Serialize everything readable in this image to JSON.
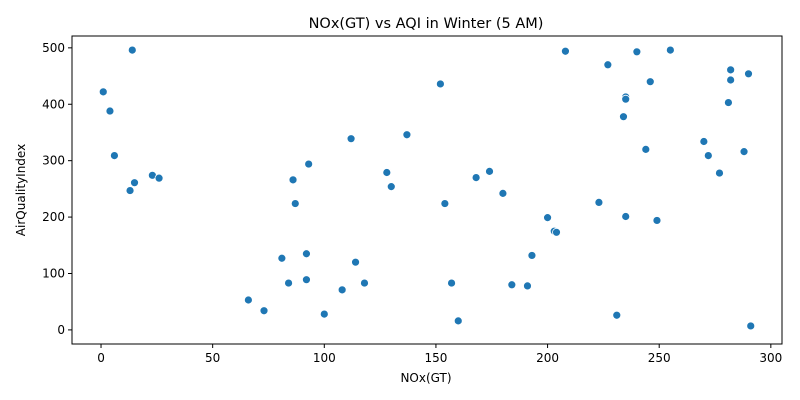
{
  "chart_data": {
    "type": "scatter",
    "title": "NOx(GT) vs AQI in Winter (5 AM)",
    "xlabel": "NOx(GT)",
    "ylabel": "AirQualityIndex",
    "xlim": [
      -13,
      305
    ],
    "ylim": [
      -25,
      521
    ],
    "xticks": [
      0,
      50,
      100,
      150,
      200,
      250,
      300
    ],
    "yticks": [
      0,
      100,
      200,
      300,
      400,
      500
    ],
    "grid": false,
    "legend": "none",
    "marker_color": "#1f77b4",
    "points": [
      {
        "x": 1,
        "y": 422
      },
      {
        "x": 4,
        "y": 388
      },
      {
        "x": 6,
        "y": 309
      },
      {
        "x": 14,
        "y": 496
      },
      {
        "x": 13,
        "y": 247
      },
      {
        "x": 15,
        "y": 261
      },
      {
        "x": 23,
        "y": 274
      },
      {
        "x": 26,
        "y": 269
      },
      {
        "x": 66,
        "y": 53
      },
      {
        "x": 73,
        "y": 34
      },
      {
        "x": 81,
        "y": 127
      },
      {
        "x": 84,
        "y": 83
      },
      {
        "x": 86,
        "y": 266
      },
      {
        "x": 87,
        "y": 224
      },
      {
        "x": 92,
        "y": 89
      },
      {
        "x": 92,
        "y": 135
      },
      {
        "x": 93,
        "y": 294
      },
      {
        "x": 100,
        "y": 28
      },
      {
        "x": 108,
        "y": 71
      },
      {
        "x": 112,
        "y": 339
      },
      {
        "x": 114,
        "y": 120
      },
      {
        "x": 118,
        "y": 83
      },
      {
        "x": 128,
        "y": 279
      },
      {
        "x": 130,
        "y": 254
      },
      {
        "x": 137,
        "y": 346
      },
      {
        "x": 152,
        "y": 436
      },
      {
        "x": 154,
        "y": 224
      },
      {
        "x": 157,
        "y": 83
      },
      {
        "x": 160,
        "y": 16
      },
      {
        "x": 168,
        "y": 270
      },
      {
        "x": 174,
        "y": 281
      },
      {
        "x": 180,
        "y": 242
      },
      {
        "x": 184,
        "y": 80
      },
      {
        "x": 191,
        "y": 78
      },
      {
        "x": 193,
        "y": 132
      },
      {
        "x": 200,
        "y": 199
      },
      {
        "x": 203,
        "y": 175
      },
      {
        "x": 204,
        "y": 173
      },
      {
        "x": 208,
        "y": 494
      },
      {
        "x": 223,
        "y": 226
      },
      {
        "x": 227,
        "y": 470
      },
      {
        "x": 231,
        "y": 26
      },
      {
        "x": 234,
        "y": 378
      },
      {
        "x": 235,
        "y": 413
      },
      {
        "x": 235,
        "y": 409
      },
      {
        "x": 235,
        "y": 201
      },
      {
        "x": 240,
        "y": 493
      },
      {
        "x": 244,
        "y": 320
      },
      {
        "x": 246,
        "y": 440
      },
      {
        "x": 249,
        "y": 194
      },
      {
        "x": 255,
        "y": 496
      },
      {
        "x": 270,
        "y": 334
      },
      {
        "x": 272,
        "y": 309
      },
      {
        "x": 277,
        "y": 278
      },
      {
        "x": 281,
        "y": 403
      },
      {
        "x": 282,
        "y": 461
      },
      {
        "x": 282,
        "y": 443
      },
      {
        "x": 288,
        "y": 316
      },
      {
        "x": 290,
        "y": 454
      },
      {
        "x": 291,
        "y": 7
      }
    ]
  }
}
